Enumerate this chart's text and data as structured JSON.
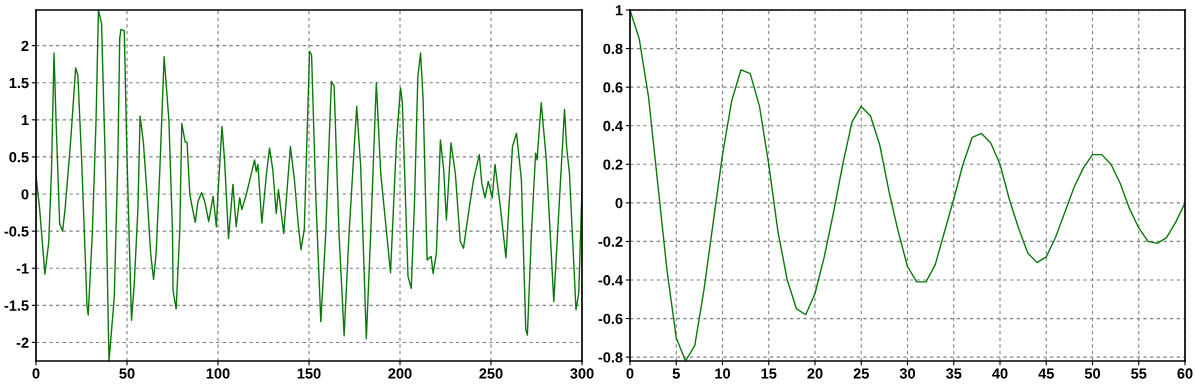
{
  "chart_data": [
    {
      "type": "line",
      "xlim": [
        0,
        300
      ],
      "ylim": [
        -2.25,
        2.48
      ],
      "xticks": [
        0,
        50,
        100,
        150,
        200,
        250,
        300
      ],
      "yticks": [
        -2,
        -1.5,
        -1,
        -0.5,
        0,
        0.5,
        1,
        1.5,
        2
      ],
      "grid": true,
      "marker": "none",
      "line_style": "solid",
      "series": [
        {
          "color": "#0a780a",
          "x": [
            0,
            2,
            4.9,
            7,
            8.5,
            9.9,
            11,
            13,
            14.6,
            16,
            19,
            21.8,
            23,
            25,
            27,
            28,
            28.7,
            31,
            33,
            34.3,
            36,
            38,
            40.1,
            43,
            45,
            46,
            46.7,
            48.5,
            50,
            52,
            52.5,
            54,
            56,
            57.2,
            59,
            61,
            63,
            64.6,
            66,
            68,
            70.4,
            73,
            75,
            75.3,
            77,
            79,
            80.1,
            82,
            83,
            84.5,
            86,
            87.5,
            89,
            91,
            92.7,
            94.9,
            97.3,
            99.1,
            100,
            102.2,
            103.6,
            105.8,
            108.2,
            110,
            111.9,
            113.1,
            115.5,
            117.3,
            120.1,
            121,
            121.9,
            124.1,
            126.5,
            128.3,
            130.1,
            132,
            133.2,
            136.1,
            139.8,
            142,
            144.2,
            145.6,
            147.4,
            150.3,
            151.4,
            153.8,
            156.5,
            159.2,
            162.3,
            163.8,
            166.5,
            169.3,
            172,
            176.2,
            178.4,
            181.5,
            183.9,
            187,
            189.4,
            194.8,
            198.1,
            200.3,
            201.3,
            204.4,
            206.2,
            208,
            209.8,
            211.3,
            212.7,
            214.9,
            217.1,
            218.2,
            220,
            222.2,
            224,
            225.5,
            228,
            230.4,
            233.1,
            234.9,
            237.6,
            240.4,
            243.6,
            244.9,
            246.7,
            248.5,
            250.7,
            252.2,
            255.3,
            258.2,
            261.8,
            264,
            266.7,
            269.1,
            270,
            272.2,
            274.5,
            275.3,
            277.6,
            280.4,
            284.5,
            287.6,
            290.4,
            291.6,
            293.1,
            296.7,
            298.2,
            300
          ],
          "values": [
            0.25,
            -0.2,
            -1.08,
            -0.65,
            0.3,
            1.9,
            1.0,
            -0.4,
            -0.5,
            -0.2,
            0.7,
            1.7,
            1.6,
            0.5,
            -0.8,
            -1.5,
            -1.63,
            -0.5,
            1.0,
            2.48,
            2.3,
            0.5,
            -2.25,
            -1.4,
            0.5,
            2.1,
            2.22,
            2.2,
            0.5,
            -1.3,
            -1.7,
            -1.2,
            -0.2,
            1.05,
            0.7,
            0,
            -0.8,
            -1.15,
            -0.8,
            0.3,
            1.85,
            1.0,
            -0.5,
            -1.3,
            -1.55,
            -0.5,
            0.95,
            0.7,
            0.7,
            0,
            -0.2,
            -0.38,
            -0.1,
            0.02,
            -0.1,
            -0.37,
            -0.03,
            -0.44,
            0.01,
            0.91,
            0.46,
            -0.6,
            0.13,
            -0.44,
            -0.05,
            -0.21,
            -0.01,
            0.17,
            0.46,
            0.3,
            0.4,
            -0.39,
            0.24,
            0.62,
            0.33,
            -0.26,
            0.06,
            -0.53,
            0.64,
            0.19,
            -0.44,
            -0.75,
            -0.48,
            1.92,
            1.88,
            -0.08,
            -1.72,
            -0.53,
            1.52,
            1.45,
            -0.53,
            -1.91,
            -0.53,
            1.18,
            0.37,
            -1.95,
            -0.53,
            1.5,
            0.28,
            -1.06,
            0.73,
            1.43,
            1.23,
            -1.11,
            -1.27,
            -0.08,
            1.58,
            1.9,
            1.27,
            -0.89,
            -0.84,
            -1.07,
            -0.8,
            0.73,
            0.33,
            -0.35,
            0.69,
            0.28,
            -0.64,
            -0.73,
            -0.26,
            0.19,
            0.53,
            0.15,
            -0.05,
            0.17,
            -0.05,
            0.4,
            -0.21,
            -0.86,
            0.64,
            0.82,
            0.19,
            -1.83,
            -1.9,
            -0.53,
            0.55,
            0.46,
            1.23,
            0.46,
            -1.45,
            -0.08,
            1.14,
            0.62,
            0.28,
            -1.56,
            -1.34,
            0.06
          ]
        }
      ]
    },
    {
      "type": "line",
      "xlim": [
        0,
        60
      ],
      "ylim": [
        -0.82,
        1
      ],
      "xticks": [
        0,
        5,
        10,
        15,
        20,
        25,
        30,
        35,
        40,
        45,
        50,
        55,
        60
      ],
      "yticks": [
        -0.8,
        -0.6,
        -0.4,
        -0.2,
        0,
        0.2,
        0.4,
        0.6,
        0.8,
        1
      ],
      "grid": true,
      "marker": "none",
      "line_style": "solid",
      "x": [
        0,
        1,
        2,
        3,
        4,
        5,
        6,
        7,
        8,
        9,
        10,
        11,
        12,
        13,
        14,
        15,
        16,
        17,
        18,
        19,
        20,
        21,
        22,
        23,
        24,
        25,
        26,
        27,
        28,
        29,
        30,
        31,
        32,
        33,
        34,
        35,
        36,
        37,
        38,
        39,
        40,
        41,
        42,
        43,
        44,
        45,
        46,
        47,
        48,
        49,
        50,
        51,
        52,
        53,
        54,
        55,
        56,
        57,
        58,
        59,
        60
      ],
      "series": [
        {
          "color": "#0a780a",
          "values": [
            1.0,
            0.85,
            0.55,
            0.1,
            -0.35,
            -0.7,
            -0.82,
            -0.74,
            -0.45,
            -0.1,
            0.25,
            0.53,
            0.69,
            0.67,
            0.5,
            0.2,
            -0.15,
            -0.4,
            -0.55,
            -0.58,
            -0.47,
            -0.28,
            -0.05,
            0.2,
            0.42,
            0.5,
            0.45,
            0.3,
            0.06,
            -0.15,
            -0.33,
            -0.41,
            -0.41,
            -0.32,
            -0.15,
            0.02,
            0.2,
            0.34,
            0.36,
            0.31,
            0.2,
            0.02,
            -0.13,
            -0.26,
            -0.31,
            -0.28,
            -0.18,
            -0.05,
            0.08,
            0.18,
            0.25,
            0.25,
            0.2,
            0.1,
            -0.03,
            -0.13,
            -0.2,
            -0.21,
            -0.18,
            -0.1,
            0.0
          ]
        }
      ]
    }
  ]
}
